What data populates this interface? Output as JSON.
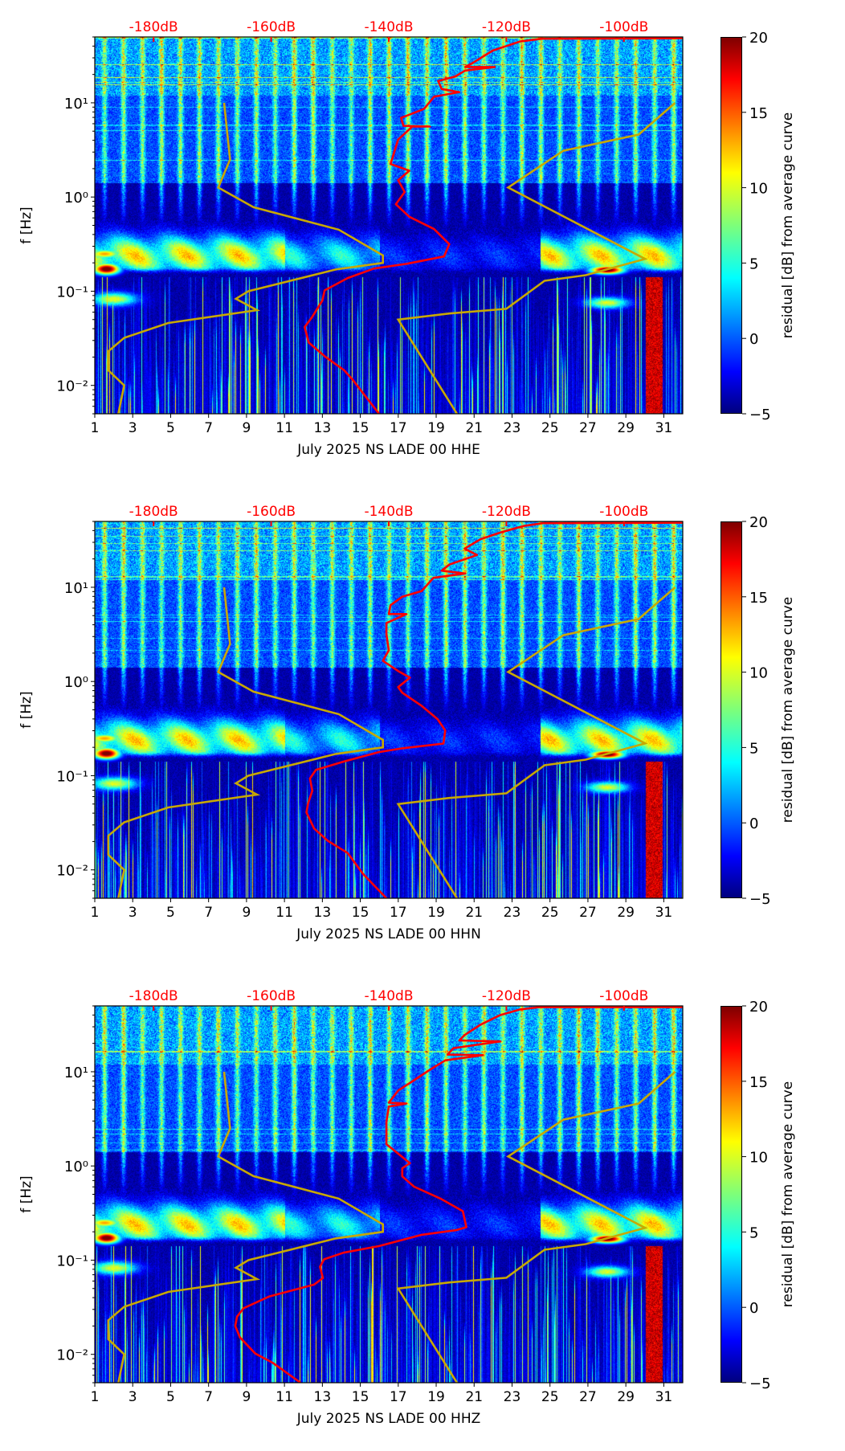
{
  "reference_models": {
    "color": "#c8a800",
    "NLNM": [
      [
        0.005,
        -186
      ],
      [
        0.01,
        -185
      ],
      [
        0.0145,
        -187.7
      ],
      [
        0.023,
        -187.7
      ],
      [
        0.032,
        -185
      ],
      [
        0.046,
        -177.5
      ],
      [
        0.063,
        -162.4
      ],
      [
        0.083,
        -166
      ],
      [
        0.1,
        -163.9
      ],
      [
        0.17,
        -149
      ],
      [
        0.2,
        -141
      ],
      [
        0.24,
        -141
      ],
      [
        0.45,
        -148.5
      ],
      [
        0.78,
        -163
      ],
      [
        1.26,
        -169
      ],
      [
        2.5,
        -167
      ],
      [
        10,
        -168
      ]
    ],
    "NHNM": [
      [
        0.005,
        -128.4
      ],
      [
        0.05,
        -138.4
      ],
      [
        0.058,
        -129.7
      ],
      [
        0.065,
        -120
      ],
      [
        0.129,
        -113.5
      ],
      [
        0.148,
        -106.5
      ],
      [
        0.22,
        -96.4
      ],
      [
        1.26,
        -119.7
      ],
      [
        3.1,
        -110.3
      ],
      [
        4.6,
        -97.5
      ],
      [
        10,
        -91.3
      ]
    ]
  },
  "colors": {
    "average_curve": "#ff0000",
    "top_axis_text": "#ff0000"
  },
  "chart_data": [
    {
      "type": "heatmap",
      "xlabel": "July 2025 NS LADE 00 HHE",
      "ylabel": "f [Hz]",
      "xlim": [
        1,
        32
      ],
      "ylim": [
        0.005,
        50
      ],
      "yscale": "log",
      "xticks": [
        "1",
        "3",
        "5",
        "7",
        "9",
        "11",
        "13",
        "15",
        "17",
        "19",
        "21",
        "23",
        "25",
        "27",
        "29",
        "31"
      ],
      "yticks": [
        {
          "value": 10,
          "label": "10¹"
        },
        {
          "value": 1,
          "label": "10⁰"
        },
        {
          "value": 0.1,
          "label": "10⁻¹"
        },
        {
          "value": 0.01,
          "label": "10⁻²"
        }
      ],
      "top_axis": {
        "range_db": [
          -190,
          -90
        ],
        "ticks": [
          {
            "value": -180,
            "label": "-180dB"
          },
          {
            "value": -160,
            "label": "-160dB"
          },
          {
            "value": -140,
            "label": "-140dB"
          },
          {
            "value": -120,
            "label": "-120dB"
          },
          {
            "value": -100,
            "label": "-100dB"
          }
        ]
      },
      "colorbar": {
        "label": "residual [dB] from average curve",
        "range": [
          -5,
          20
        ],
        "ticks": [
          "−5",
          "0",
          "5",
          "10",
          "15",
          "20"
        ]
      },
      "average_curve": [
        [
          0.00495,
          -141.6
        ],
        [
          0.0116,
          -146.2
        ],
        [
          0.0145,
          -147.6
        ],
        [
          0.0204,
          -150.9
        ],
        [
          0.0285,
          -153.6
        ],
        [
          0.0417,
          -154.3
        ],
        [
          0.0525,
          -153.1
        ],
        [
          0.0794,
          -151.3
        ],
        [
          0.102,
          -150.9
        ],
        [
          0.138,
          -147
        ],
        [
          0.174,
          -142.5
        ],
        [
          0.195,
          -137
        ],
        [
          0.234,
          -130.6
        ],
        [
          0.316,
          -129.7
        ],
        [
          0.457,
          -132.3
        ],
        [
          0.617,
          -136.5
        ],
        [
          0.838,
          -138.8
        ],
        [
          1.13,
          -137.3
        ],
        [
          1.51,
          -138.4
        ],
        [
          1.9,
          -136.5
        ],
        [
          2.24,
          -139.7
        ],
        [
          4.07,
          -138.4
        ],
        [
          5.6,
          -136
        ],
        [
          5.6,
          -133
        ],
        [
          5.7,
          -137.5
        ],
        [
          6.92,
          -137.9
        ],
        [
          8.61,
          -134
        ],
        [
          11.6,
          -132.3
        ],
        [
          13,
          -128
        ],
        [
          14,
          -131
        ],
        [
          17,
          -131.6
        ],
        [
          19,
          -128.7
        ],
        [
          22,
          -127
        ],
        [
          24,
          -122
        ],
        [
          24,
          -127
        ],
        [
          26.3,
          -125.8
        ],
        [
          35.9,
          -122.3
        ],
        [
          44.7,
          -117.7
        ],
        [
          47.9,
          -114
        ],
        [
          48.5,
          -90
        ]
      ]
    },
    {
      "type": "heatmap",
      "xlabel": "July 2025 NS LADE 00 HHN",
      "ylabel": "f [Hz]",
      "xlim": [
        1,
        32
      ],
      "ylim": [
        0.005,
        50
      ],
      "yscale": "log",
      "xticks": [
        "1",
        "3",
        "5",
        "7",
        "9",
        "11",
        "13",
        "15",
        "17",
        "19",
        "21",
        "23",
        "25",
        "27",
        "29",
        "31"
      ],
      "yticks": [
        {
          "value": 10,
          "label": "10¹"
        },
        {
          "value": 1,
          "label": "10⁰"
        },
        {
          "value": 0.1,
          "label": "10⁻¹"
        },
        {
          "value": 0.01,
          "label": "10⁻²"
        }
      ],
      "top_axis": {
        "range_db": [
          -190,
          -90
        ],
        "ticks": [
          {
            "value": -180,
            "label": "-180dB"
          },
          {
            "value": -160,
            "label": "-160dB"
          },
          {
            "value": -140,
            "label": "-140dB"
          },
          {
            "value": -120,
            "label": "-120dB"
          },
          {
            "value": -100,
            "label": "-100dB"
          }
        ]
      },
      "colorbar": {
        "label": "residual [dB] from average curve",
        "range": [
          -5,
          20
        ],
        "ticks": [
          "−5",
          "0",
          "5",
          "10",
          "15",
          "20"
        ]
      },
      "average_curve": [
        [
          0.005,
          -140.4
        ],
        [
          0.0091,
          -144.4
        ],
        [
          0.0151,
          -147
        ],
        [
          0.0204,
          -150.4
        ],
        [
          0.0275,
          -152.7
        ],
        [
          0.0407,
          -154
        ],
        [
          0.0513,
          -153.7
        ],
        [
          0.0692,
          -153
        ],
        [
          0.0933,
          -153.4
        ],
        [
          0.115,
          -152.4
        ],
        [
          0.141,
          -147.7
        ],
        [
          0.178,
          -141.7
        ],
        [
          0.195,
          -137.7
        ],
        [
          0.219,
          -130.7
        ],
        [
          0.302,
          -130.4
        ],
        [
          0.398,
          -131.7
        ],
        [
          0.55,
          -134.4
        ],
        [
          0.759,
          -137.7
        ],
        [
          0.871,
          -138.4
        ],
        [
          1.1,
          -136.4
        ],
        [
          1.29,
          -138.4
        ],
        [
          1.66,
          -141
        ],
        [
          2.14,
          -140
        ],
        [
          3.16,
          -140.4
        ],
        [
          4.17,
          -140.4
        ],
        [
          5.2,
          -137
        ],
        [
          5.2,
          -140
        ],
        [
          6.46,
          -139.7
        ],
        [
          7.94,
          -137.7
        ],
        [
          9.12,
          -134.4
        ],
        [
          12.6,
          -132.4
        ],
        [
          14,
          -127
        ],
        [
          15,
          -131
        ],
        [
          17.4,
          -129.7
        ],
        [
          22,
          -125
        ],
        [
          25.7,
          -127.1
        ],
        [
          32.4,
          -124.4
        ],
        [
          38,
          -121.1
        ],
        [
          44.7,
          -117.1
        ],
        [
          47.9,
          -113.8
        ],
        [
          48.5,
          -90
        ]
      ]
    },
    {
      "type": "heatmap",
      "xlabel": "July 2025 NS LADE 00 HHZ",
      "ylabel": "f [Hz]",
      "xlim": [
        1,
        32
      ],
      "ylim": [
        0.005,
        50
      ],
      "yscale": "log",
      "xticks": [
        "1",
        "3",
        "5",
        "7",
        "9",
        "11",
        "13",
        "15",
        "17",
        "19",
        "21",
        "23",
        "25",
        "27",
        "29",
        "31"
      ],
      "yticks": [
        {
          "value": 10,
          "label": "10¹"
        },
        {
          "value": 1,
          "label": "10⁰"
        },
        {
          "value": 0.1,
          "label": "10⁻¹"
        },
        {
          "value": 0.01,
          "label": "10⁻²"
        }
      ],
      "top_axis": {
        "range_db": [
          -190,
          -90
        ],
        "ticks": [
          {
            "value": -180,
            "label": "-180dB"
          },
          {
            "value": -160,
            "label": "-160dB"
          },
          {
            "value": -140,
            "label": "-140dB"
          },
          {
            "value": -120,
            "label": "-120dB"
          },
          {
            "value": -100,
            "label": "-100dB"
          }
        ]
      },
      "colorbar": {
        "label": "residual [dB] from average curve",
        "range": [
          -5,
          20
        ],
        "ticks": [
          "−5",
          "0",
          "5",
          "10",
          "15",
          "20"
        ]
      },
      "average_curve": [
        [
          0.005,
          -155
        ],
        [
          0.0081,
          -159.7
        ],
        [
          0.0102,
          -162.7
        ],
        [
          0.0151,
          -165.3
        ],
        [
          0.02,
          -166.1
        ],
        [
          0.0251,
          -165.8
        ],
        [
          0.0309,
          -164.7
        ],
        [
          0.0412,
          -160.3
        ],
        [
          0.055,
          -152.7
        ],
        [
          0.0646,
          -151.2
        ],
        [
          0.0851,
          -151.7
        ],
        [
          0.102,
          -151
        ],
        [
          0.12,
          -147.7
        ],
        [
          0.141,
          -141.7
        ],
        [
          0.186,
          -134.4
        ],
        [
          0.209,
          -128.4
        ],
        [
          0.224,
          -126.8
        ],
        [
          0.331,
          -127.4
        ],
        [
          0.447,
          -131.1
        ],
        [
          0.603,
          -135.7
        ],
        [
          0.776,
          -137.7
        ],
        [
          0.944,
          -137.7
        ],
        [
          1.07,
          -136.4
        ],
        [
          1.35,
          -138.4
        ],
        [
          1.7,
          -140.4
        ],
        [
          2.04,
          -140.4
        ],
        [
          2.95,
          -140.4
        ],
        [
          4.27,
          -140
        ],
        [
          4.6,
          -137
        ],
        [
          4.7,
          -140
        ],
        [
          6.31,
          -138.4
        ],
        [
          8.13,
          -135.7
        ],
        [
          10.5,
          -133
        ],
        [
          13.2,
          -130.4
        ],
        [
          15,
          -124
        ],
        [
          15.2,
          -130
        ],
        [
          17.8,
          -129
        ],
        [
          21,
          -121
        ],
        [
          21.5,
          -128
        ],
        [
          24.5,
          -127.1
        ],
        [
          31.6,
          -124.4
        ],
        [
          39.8,
          -121.1
        ],
        [
          45.7,
          -117.8
        ],
        [
          48.5,
          -114.5
        ],
        [
          48.5,
          -90
        ]
      ]
    }
  ]
}
